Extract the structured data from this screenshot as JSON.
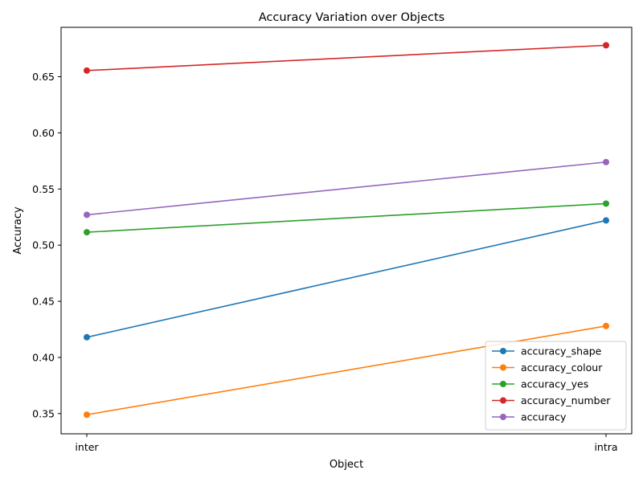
{
  "chart_data": {
    "type": "line",
    "title": "Accuracy Variation over Objects",
    "xlabel": "Object",
    "ylabel": "Accuracy",
    "categories": [
      "inter",
      "intra"
    ],
    "ylim": [
      0.332,
      0.694
    ],
    "yticks": [
      "0.35",
      "0.40",
      "0.45",
      "0.50",
      "0.55",
      "0.60",
      "0.65"
    ],
    "grid": false,
    "legend_position": "lower-right",
    "series": [
      {
        "name": "accuracy_shape",
        "color": "#1f77b4",
        "values": [
          0.418,
          0.522
        ]
      },
      {
        "name": "accuracy_colour",
        "color": "#ff7f0e",
        "values": [
          0.349,
          0.428
        ]
      },
      {
        "name": "accuracy_yes",
        "color": "#2ca02c",
        "values": [
          0.5115,
          0.537
        ]
      },
      {
        "name": "accuracy_number",
        "color": "#d62728",
        "values": [
          0.6555,
          0.678
        ]
      },
      {
        "name": "accuracy",
        "color": "#9467bd",
        "values": [
          0.527,
          0.574
        ]
      }
    ]
  }
}
